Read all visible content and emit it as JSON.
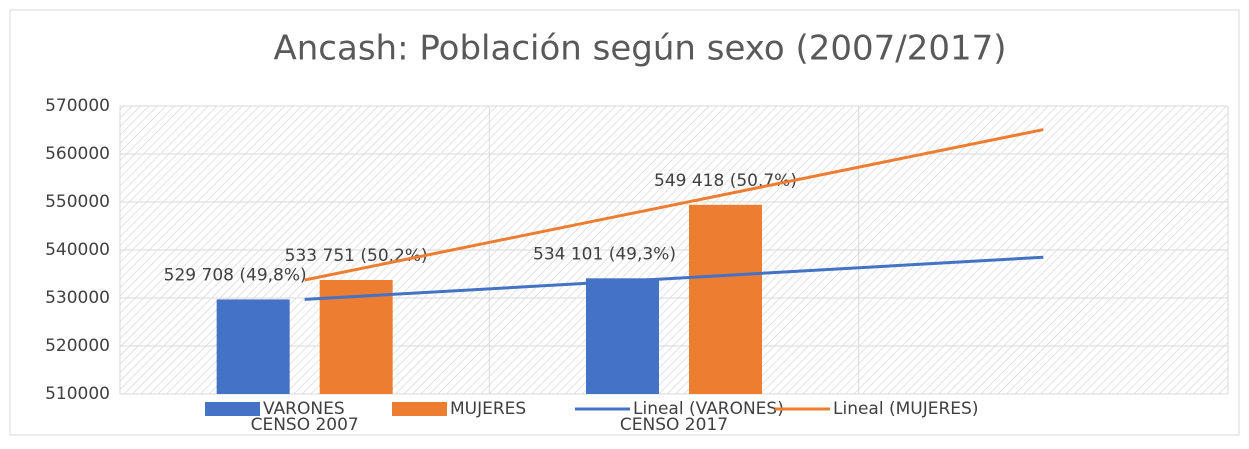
{
  "chart_data": {
    "type": "bar",
    "title": "Ancash: Población según sexo (2007/2017)",
    "categories": [
      "CENSO 2007",
      "CENSO 2017",
      null
    ],
    "series": [
      {
        "name": "VARONES",
        "color": "#4472c4",
        "values": [
          529708,
          534101,
          null
        ],
        "value_labels": [
          "529 708 (49,8%)",
          "534 101 (49,3%)",
          null
        ]
      },
      {
        "name": "MUJERES",
        "color": "#ed7d31",
        "values": [
          533751,
          549418,
          null
        ],
        "value_labels": [
          "533 751 (50.2%)",
          "549 418 (50.7%)",
          null
        ]
      },
      {
        "name": "Lineal (VARONES)",
        "type": "line",
        "color": "#4472c4",
        "values": [
          529708,
          534101,
          538494
        ]
      },
      {
        "name": "Lineal (MUJERES)",
        "type": "line",
        "color": "#ed7d31",
        "values": [
          533751,
          549418,
          565085
        ]
      }
    ],
    "ylim": [
      510000,
      570000
    ],
    "yticks": [
      510000,
      520000,
      530000,
      540000,
      550000,
      560000,
      570000
    ],
    "grid": true,
    "legend": "bottom"
  }
}
